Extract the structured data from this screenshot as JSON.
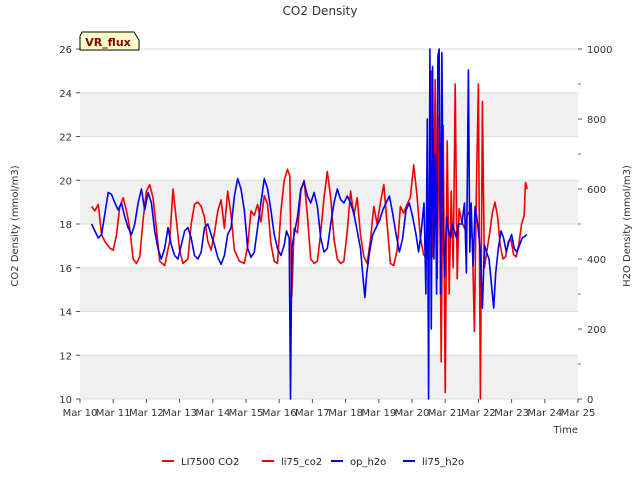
{
  "chart_data": {
    "type": "line",
    "title": "CO2 Density",
    "xlabel": "Time",
    "ylabel": "CO2 Density (mmol/m3)",
    "y2label": "H2O Density (mmol/m3)",
    "badge": "VR_flux",
    "x_ticks": [
      "Mar 10",
      "Mar 11",
      "Mar 12",
      "Mar 13",
      "Mar 14",
      "Mar 15",
      "Mar 16",
      "Mar 17",
      "Mar 18",
      "Mar 19",
      "Mar 20",
      "Mar 21",
      "Mar 22",
      "Mar 23",
      "Mar 24",
      "Mar 25"
    ],
    "xlim": [
      0,
      15
    ],
    "ylim": [
      10,
      26
    ],
    "y_ticks": [
      10,
      12,
      14,
      16,
      18,
      20,
      22,
      24,
      26
    ],
    "y2lim": [
      0,
      1000
    ],
    "y2_ticks": [
      0,
      200,
      400,
      600,
      800,
      1000
    ],
    "grid": "horizontal",
    "legend_position": "bottom",
    "colors": {
      "red": "#ee0000",
      "blue": "#0000ee",
      "band": "#f0f0f0",
      "badge_bg": "#ffffcc"
    },
    "legend": [
      {
        "label": "LI7500 CO2",
        "color": "#ee0000"
      },
      {
        "label": "li75_co2",
        "color": "#ee0000"
      },
      {
        "label": "op_h2o",
        "color": "#0000ee"
      },
      {
        "label": "li75_h2o",
        "color": "#0000ee"
      }
    ],
    "series": [
      {
        "name": "li75_co2",
        "axis": "left",
        "color": "#ee0000",
        "points": [
          [
            0.35,
            18.8
          ],
          [
            0.45,
            18.6
          ],
          [
            0.55,
            18.9
          ],
          [
            0.65,
            17.5
          ],
          [
            0.75,
            17.2
          ],
          [
            0.9,
            16.9
          ],
          [
            1.0,
            16.8
          ],
          [
            1.1,
            17.5
          ],
          [
            1.2,
            18.8
          ],
          [
            1.3,
            19.2
          ],
          [
            1.4,
            18.6
          ],
          [
            1.5,
            17.8
          ],
          [
            1.6,
            16.4
          ],
          [
            1.7,
            16.2
          ],
          [
            1.8,
            16.5
          ],
          [
            1.9,
            18.2
          ],
          [
            2.0,
            19.5
          ],
          [
            2.1,
            19.8
          ],
          [
            2.2,
            19.2
          ],
          [
            2.3,
            17.8
          ],
          [
            2.4,
            16.3
          ],
          [
            2.55,
            16.1
          ],
          [
            2.7,
            17.2
          ],
          [
            2.8,
            19.6
          ],
          [
            2.9,
            18.2
          ],
          [
            3.0,
            16.8
          ],
          [
            3.1,
            16.2
          ],
          [
            3.25,
            16.4
          ],
          [
            3.35,
            18.0
          ],
          [
            3.45,
            18.9
          ],
          [
            3.55,
            19.0
          ],
          [
            3.65,
            18.8
          ],
          [
            3.75,
            18.3
          ],
          [
            3.85,
            17.2
          ],
          [
            3.95,
            16.8
          ],
          [
            4.05,
            17.6
          ],
          [
            4.15,
            18.6
          ],
          [
            4.25,
            19.1
          ],
          [
            4.35,
            17.8
          ],
          [
            4.45,
            19.5
          ],
          [
            4.55,
            18.4
          ],
          [
            4.65,
            16.8
          ],
          [
            4.8,
            16.3
          ],
          [
            4.95,
            16.2
          ],
          [
            5.05,
            17.0
          ],
          [
            5.15,
            18.6
          ],
          [
            5.25,
            18.4
          ],
          [
            5.35,
            18.9
          ],
          [
            5.45,
            18.1
          ],
          [
            5.55,
            19.3
          ],
          [
            5.65,
            18.9
          ],
          [
            5.75,
            17.1
          ],
          [
            5.85,
            16.3
          ],
          [
            5.95,
            16.2
          ],
          [
            6.05,
            18.6
          ],
          [
            6.15,
            20.0
          ],
          [
            6.25,
            20.5
          ],
          [
            6.32,
            20.2
          ],
          [
            6.38,
            14.7
          ],
          [
            6.45,
            17.8
          ],
          [
            6.55,
            17.6
          ],
          [
            6.65,
            19.5
          ],
          [
            6.75,
            20.0
          ],
          [
            6.85,
            18.4
          ],
          [
            6.95,
            16.4
          ],
          [
            7.05,
            16.2
          ],
          [
            7.15,
            16.3
          ],
          [
            7.25,
            17.6
          ],
          [
            7.35,
            19.2
          ],
          [
            7.45,
            20.4
          ],
          [
            7.55,
            19.2
          ],
          [
            7.65,
            17.3
          ],
          [
            7.75,
            16.4
          ],
          [
            7.85,
            16.2
          ],
          [
            7.95,
            16.3
          ],
          [
            8.05,
            17.7
          ],
          [
            8.15,
            19.5
          ],
          [
            8.25,
            18.4
          ],
          [
            8.35,
            19.2
          ],
          [
            8.45,
            17.5
          ],
          [
            8.55,
            16.5
          ],
          [
            8.65,
            16.2
          ],
          [
            8.75,
            17.3
          ],
          [
            8.85,
            18.8
          ],
          [
            8.95,
            18.0
          ],
          [
            9.05,
            19.0
          ],
          [
            9.15,
            19.8
          ],
          [
            9.25,
            18.0
          ],
          [
            9.35,
            16.2
          ],
          [
            9.45,
            16.1
          ],
          [
            9.55,
            16.8
          ],
          [
            9.65,
            18.8
          ],
          [
            9.75,
            18.5
          ],
          [
            9.85,
            18.9
          ],
          [
            9.95,
            19.2
          ],
          [
            10.05,
            20.7
          ],
          [
            10.15,
            19.3
          ],
          [
            10.25,
            17.4
          ],
          [
            10.35,
            16.6
          ],
          [
            10.45,
            16.4
          ],
          [
            10.52,
            18.2
          ],
          [
            10.58,
            25.0
          ],
          [
            10.64,
            16.5
          ],
          [
            10.7,
            24.6
          ],
          [
            10.76,
            15.5
          ],
          [
            10.82,
            23.0
          ],
          [
            10.88,
            11.7
          ],
          [
            10.94,
            22.5
          ],
          [
            11.0,
            10.3
          ],
          [
            11.06,
            21.8
          ],
          [
            11.12,
            14.8
          ],
          [
            11.18,
            19.5
          ],
          [
            11.24,
            16.0
          ],
          [
            11.3,
            24.4
          ],
          [
            11.36,
            15.5
          ],
          [
            11.42,
            18.7
          ],
          [
            11.5,
            18.1
          ],
          [
            11.58,
            17.8
          ],
          [
            11.66,
            18.4
          ],
          [
            11.74,
            18.6
          ],
          [
            11.82,
            17.2
          ],
          [
            11.88,
            13.1
          ],
          [
            11.94,
            19.6
          ],
          [
            12.0,
            24.4
          ],
          [
            12.06,
            10.0
          ],
          [
            12.12,
            23.6
          ],
          [
            12.18,
            16.0
          ],
          [
            12.26,
            16.8
          ],
          [
            12.34,
            17.6
          ],
          [
            12.42,
            18.5
          ],
          [
            12.5,
            19.0
          ],
          [
            12.58,
            18.3
          ],
          [
            12.66,
            17.0
          ],
          [
            12.74,
            16.4
          ],
          [
            12.82,
            16.5
          ],
          [
            12.9,
            17.2
          ],
          [
            12.98,
            17.3
          ],
          [
            13.06,
            16.6
          ],
          [
            13.14,
            16.5
          ],
          [
            13.22,
            17.1
          ],
          [
            13.3,
            18.0
          ],
          [
            13.38,
            18.4
          ],
          [
            13.42,
            19.9
          ],
          [
            13.47,
            19.6
          ]
        ]
      },
      {
        "name": "li75_h2o",
        "axis": "right",
        "color": "#0000ee",
        "points": [
          [
            0.35,
            500
          ],
          [
            0.45,
            480
          ],
          [
            0.55,
            460
          ],
          [
            0.65,
            470
          ],
          [
            0.75,
            530
          ],
          [
            0.85,
            590
          ],
          [
            0.95,
            585
          ],
          [
            1.05,
            560
          ],
          [
            1.15,
            540
          ],
          [
            1.25,
            560
          ],
          [
            1.35,
            520
          ],
          [
            1.45,
            490
          ],
          [
            1.55,
            470
          ],
          [
            1.65,
            500
          ],
          [
            1.75,
            560
          ],
          [
            1.85,
            600
          ],
          [
            1.95,
            540
          ],
          [
            2.05,
            590
          ],
          [
            2.15,
            560
          ],
          [
            2.25,
            480
          ],
          [
            2.35,
            430
          ],
          [
            2.45,
            400
          ],
          [
            2.55,
            430
          ],
          [
            2.65,
            490
          ],
          [
            2.75,
            440
          ],
          [
            2.85,
            410
          ],
          [
            2.95,
            400
          ],
          [
            3.05,
            440
          ],
          [
            3.15,
            480
          ],
          [
            3.25,
            490
          ],
          [
            3.35,
            460
          ],
          [
            3.45,
            410
          ],
          [
            3.55,
            400
          ],
          [
            3.65,
            420
          ],
          [
            3.75,
            490
          ],
          [
            3.85,
            500
          ],
          [
            3.95,
            470
          ],
          [
            4.05,
            440
          ],
          [
            4.15,
            405
          ],
          [
            4.25,
            385
          ],
          [
            4.35,
            410
          ],
          [
            4.45,
            470
          ],
          [
            4.55,
            490
          ],
          [
            4.65,
            580
          ],
          [
            4.75,
            630
          ],
          [
            4.85,
            600
          ],
          [
            4.95,
            540
          ],
          [
            5.05,
            430
          ],
          [
            5.15,
            405
          ],
          [
            5.25,
            420
          ],
          [
            5.35,
            490
          ],
          [
            5.45,
            560
          ],
          [
            5.55,
            630
          ],
          [
            5.65,
            600
          ],
          [
            5.75,
            540
          ],
          [
            5.85,
            470
          ],
          [
            5.95,
            430
          ],
          [
            6.05,
            410
          ],
          [
            6.15,
            440
          ],
          [
            6.22,
            480
          ],
          [
            6.3,
            460
          ],
          [
            6.34,
            0
          ],
          [
            6.38,
            430
          ],
          [
            6.45,
            470
          ],
          [
            6.55,
            520
          ],
          [
            6.65,
            600
          ],
          [
            6.75,
            620
          ],
          [
            6.85,
            580
          ],
          [
            6.95,
            560
          ],
          [
            7.05,
            590
          ],
          [
            7.15,
            550
          ],
          [
            7.25,
            460
          ],
          [
            7.35,
            420
          ],
          [
            7.45,
            430
          ],
          [
            7.55,
            500
          ],
          [
            7.65,
            560
          ],
          [
            7.75,
            600
          ],
          [
            7.85,
            570
          ],
          [
            7.95,
            560
          ],
          [
            8.05,
            580
          ],
          [
            8.15,
            560
          ],
          [
            8.25,
            530
          ],
          [
            8.35,
            480
          ],
          [
            8.45,
            430
          ],
          [
            8.52,
            350
          ],
          [
            8.58,
            290
          ],
          [
            8.64,
            360
          ],
          [
            8.72,
            420
          ],
          [
            8.82,
            470
          ],
          [
            8.92,
            490
          ],
          [
            9.02,
            510
          ],
          [
            9.12,
            540
          ],
          [
            9.22,
            560
          ],
          [
            9.32,
            580
          ],
          [
            9.42,
            530
          ],
          [
            9.52,
            470
          ],
          [
            9.62,
            420
          ],
          [
            9.72,
            460
          ],
          [
            9.82,
            540
          ],
          [
            9.92,
            560
          ],
          [
            10.02,
            520
          ],
          [
            10.12,
            470
          ],
          [
            10.2,
            420
          ],
          [
            10.28,
            480
          ],
          [
            10.36,
            560
          ],
          [
            10.42,
            300
          ],
          [
            10.46,
            800
          ],
          [
            10.5,
            0
          ],
          [
            10.54,
            1000
          ],
          [
            10.58,
            200
          ],
          [
            10.62,
            950
          ],
          [
            10.66,
            400
          ],
          [
            10.7,
            700
          ],
          [
            10.74,
            300
          ],
          [
            10.78,
            980
          ],
          [
            10.82,
            1000
          ],
          [
            10.86,
            300
          ],
          [
            10.9,
            990
          ],
          [
            10.94,
            500
          ],
          [
            10.98,
            350
          ],
          [
            11.04,
            520
          ],
          [
            11.1,
            480
          ],
          [
            11.16,
            460
          ],
          [
            11.22,
            500
          ],
          [
            11.28,
            480
          ],
          [
            11.34,
            460
          ],
          [
            11.4,
            500
          ],
          [
            11.5,
            500
          ],
          [
            11.58,
            560
          ],
          [
            11.64,
            360
          ],
          [
            11.7,
            940
          ],
          [
            11.74,
            420
          ],
          [
            11.78,
            560
          ],
          [
            11.84,
            380
          ],
          [
            11.9,
            550
          ],
          [
            11.98,
            500
          ],
          [
            12.06,
            420
          ],
          [
            12.12,
            260
          ],
          [
            12.18,
            440
          ],
          [
            12.24,
            420
          ],
          [
            12.32,
            400
          ],
          [
            12.4,
            320
          ],
          [
            12.46,
            260
          ],
          [
            12.52,
            360
          ],
          [
            12.6,
            430
          ],
          [
            12.68,
            480
          ],
          [
            12.76,
            460
          ],
          [
            12.84,
            420
          ],
          [
            12.92,
            450
          ],
          [
            13.0,
            470
          ],
          [
            13.08,
            430
          ],
          [
            13.16,
            420
          ],
          [
            13.24,
            440
          ],
          [
            13.32,
            460
          ],
          [
            13.4,
            465
          ],
          [
            13.46,
            470
          ]
        ]
      }
    ]
  }
}
